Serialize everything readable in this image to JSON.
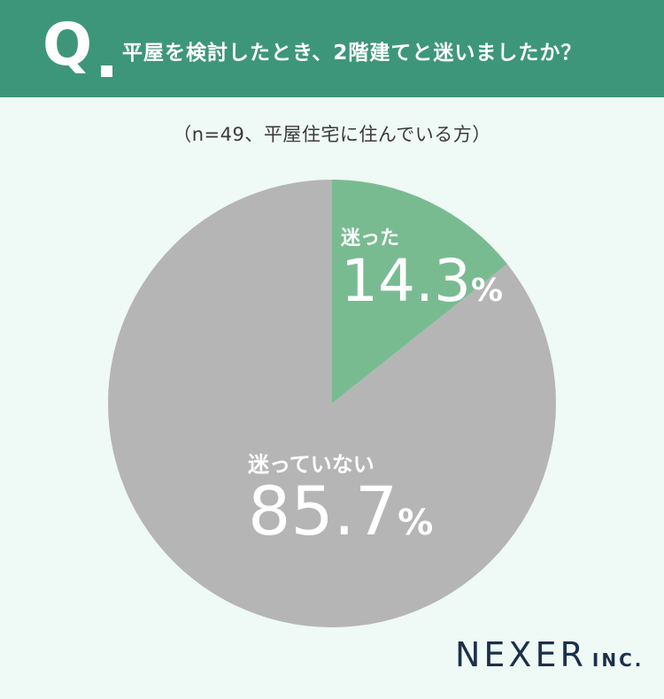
{
  "header": {
    "q_letter": "Q",
    "question": "平屋を検討したとき、2階建てと迷いましたか？"
  },
  "subtitle": "（n=49、平屋住宅に住んでいる方）",
  "chart_data": {
    "type": "pie",
    "title": "平屋を検討したとき、2階建てと迷いましたか？",
    "categories": [
      "迷った",
      "迷っていない"
    ],
    "values": [
      14.3,
      85.7
    ],
    "unit": "%",
    "colors": [
      "#79bb91",
      "#b5b5b5"
    ],
    "start": "12 o'clock, clockwise",
    "labels": [
      "迷った",
      "迷っていない"
    ],
    "display_values": [
      "14.3",
      "85.7"
    ]
  },
  "logo": {
    "main": "NEXER",
    "sub": "INC."
  }
}
